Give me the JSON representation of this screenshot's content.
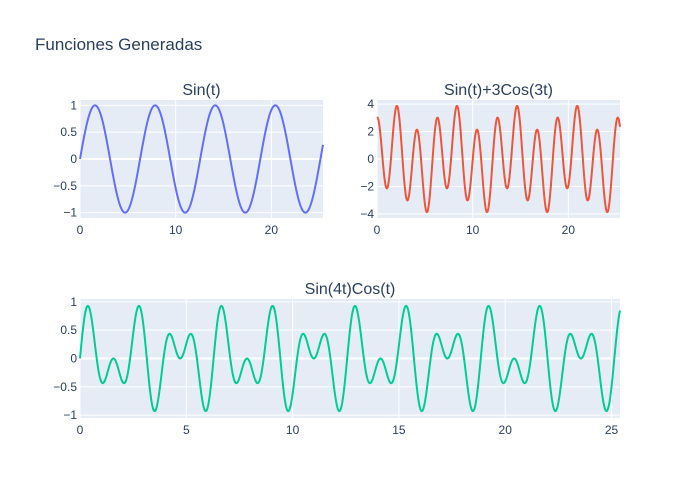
{
  "title": "Funciones Generadas",
  "colors": {
    "plot_bg": "#e5ecf6",
    "grid": "#ffffff",
    "text": "#2a3f5f"
  },
  "chart_data": [
    {
      "type": "line",
      "title": "Sin(t)",
      "function": "sin(t)",
      "x_range": [
        0,
        25.4
      ],
      "ylim": [
        -1.1,
        1.1
      ],
      "xticks": [
        0,
        10,
        20
      ],
      "yticks": [
        1,
        0.5,
        0,
        -0.5,
        -1
      ],
      "ytick_labels": [
        "1",
        "0.5",
        "0",
        "−0.5",
        "−1"
      ],
      "color": "#636efa",
      "samples": 600,
      "grid": true
    },
    {
      "type": "line",
      "title": "Sin(t)+3Cos(3t)",
      "function": "sin(t)+3cos(3t)",
      "x_range": [
        0,
        25.4
      ],
      "ylim": [
        -4.3,
        4.3
      ],
      "xticks": [
        0,
        10,
        20
      ],
      "yticks": [
        4,
        2,
        0,
        -2,
        -4
      ],
      "ytick_labels": [
        "4",
        "2",
        "0",
        "−2",
        "−4"
      ],
      "color": "#ef553b",
      "samples": 800,
      "grid": true
    },
    {
      "type": "line",
      "title": "Sin(4t)Cos(t)",
      "function": "sin(4t)cos(t)",
      "x_range": [
        0,
        25.4
      ],
      "ylim": [
        -1.05,
        1.05
      ],
      "xticks": [
        0,
        5,
        10,
        15,
        20,
        25
      ],
      "yticks": [
        1,
        0.5,
        0,
        -0.5,
        -1
      ],
      "ytick_labels": [
        "1",
        "0.5",
        "0",
        "−0.5",
        "−1"
      ],
      "color": "#00cc96",
      "samples": 1400,
      "grid": true
    }
  ]
}
